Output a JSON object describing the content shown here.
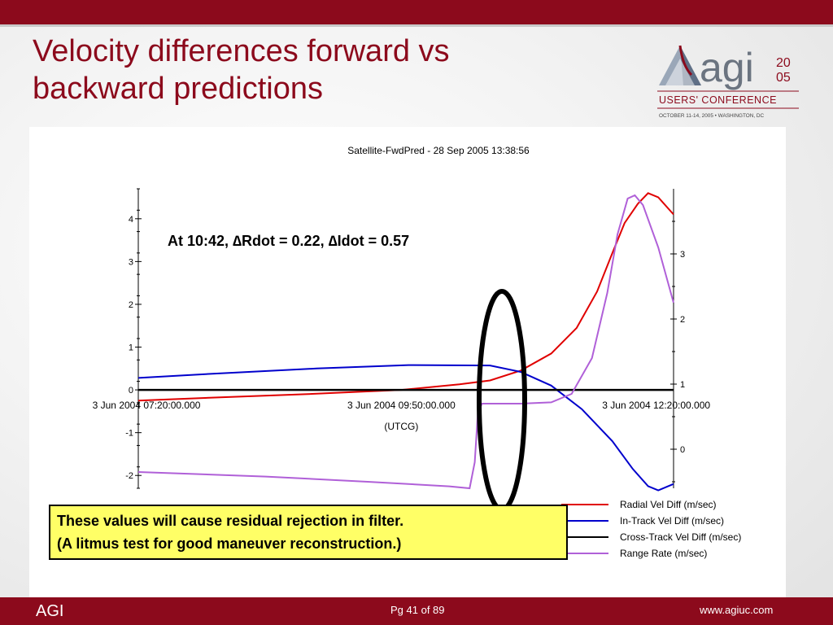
{
  "slide": {
    "title": "Velocity differences forward vs\nbackward predictions",
    "footer_left": "AGI",
    "footer_page": "Pg 41 of 89",
    "footer_url": "www.agiuc.com",
    "logo": {
      "word": "agi",
      "year_top": "20",
      "year_bottom": "05",
      "line1": "USERS' CONFERENCE",
      "line2": "OCTOBER 11-14, 2005 • WASHINGTON, DC"
    },
    "annotation": "At 10:42, ∆Rdot = 0.22, ∆Idot = 0.57",
    "callout_line1": "These values will cause residual rejection in filter.",
    "callout_line2": "(A litmus test for good maneuver reconstruction.)",
    "colors": {
      "accent": "#8c0a1c",
      "callout_bg": "#ffff66",
      "ellipse": "#000000"
    }
  },
  "chart_data": {
    "type": "line",
    "title": "Satellite-FwdPred - 28 Sep 2005 13:38:56",
    "xlabel": "(UTCG)",
    "x_ticks": [
      "3 Jun 2004 07:20:00.000",
      "3 Jun 2004 09:50:00.000",
      "3 Jun 2004 12:20:00.000"
    ],
    "x_range_hours": [
      7.25,
      12.5
    ],
    "ylim_left": [
      -2.3,
      4.7
    ],
    "ylim_right": [
      -0.6,
      4.0
    ],
    "y_ticks_left": [
      -2,
      -1,
      0,
      1,
      2,
      3,
      4
    ],
    "y_ticks_right": [
      0,
      1,
      2,
      3
    ],
    "legend_position": "bottom-right",
    "series": [
      {
        "name": "Radial Vel Diff (m/sec)",
        "color": "#e00000",
        "axis": "left",
        "points": [
          [
            7.25,
            -0.25
          ],
          [
            8.0,
            -0.18
          ],
          [
            9.0,
            -0.09
          ],
          [
            9.83,
            0.0
          ],
          [
            10.4,
            0.13
          ],
          [
            10.7,
            0.22
          ],
          [
            11.0,
            0.45
          ],
          [
            11.3,
            0.85
          ],
          [
            11.55,
            1.45
          ],
          [
            11.75,
            2.3
          ],
          [
            11.9,
            3.2
          ],
          [
            12.02,
            3.9
          ],
          [
            12.15,
            4.35
          ],
          [
            12.25,
            4.6
          ],
          [
            12.35,
            4.5
          ],
          [
            12.5,
            4.1
          ]
        ]
      },
      {
        "name": "In-Track Vel Diff (m/sec)",
        "color": "#0000cc",
        "axis": "left",
        "points": [
          [
            7.25,
            0.28
          ],
          [
            8.0,
            0.38
          ],
          [
            9.0,
            0.5
          ],
          [
            9.9,
            0.58
          ],
          [
            10.7,
            0.57
          ],
          [
            11.0,
            0.42
          ],
          [
            11.3,
            0.1
          ],
          [
            11.6,
            -0.45
          ],
          [
            11.9,
            -1.2
          ],
          [
            12.1,
            -1.85
          ],
          [
            12.25,
            -2.25
          ],
          [
            12.35,
            -2.35
          ],
          [
            12.5,
            -2.2
          ]
        ]
      },
      {
        "name": "Cross-Track Vel Diff (m/sec)",
        "color": "#000000",
        "axis": "left",
        "points": [
          [
            7.25,
            0.0
          ],
          [
            12.5,
            0.0
          ]
        ]
      },
      {
        "name": "Range Rate (m/sec)",
        "color": "#b060d8",
        "axis": "right",
        "points": [
          [
            7.25,
            -0.35
          ],
          [
            8.5,
            -0.42
          ],
          [
            9.5,
            -0.5
          ],
          [
            10.3,
            -0.57
          ],
          [
            10.5,
            -0.6
          ],
          [
            10.55,
            -0.2
          ],
          [
            10.58,
            0.55
          ],
          [
            10.62,
            0.7
          ],
          [
            11.0,
            0.7
          ],
          [
            11.3,
            0.72
          ],
          [
            11.5,
            0.85
          ],
          [
            11.7,
            1.4
          ],
          [
            11.85,
            2.4
          ],
          [
            11.95,
            3.3
          ],
          [
            12.05,
            3.85
          ],
          [
            12.12,
            3.9
          ],
          [
            12.2,
            3.75
          ],
          [
            12.35,
            3.1
          ],
          [
            12.5,
            2.25
          ]
        ]
      }
    ]
  }
}
